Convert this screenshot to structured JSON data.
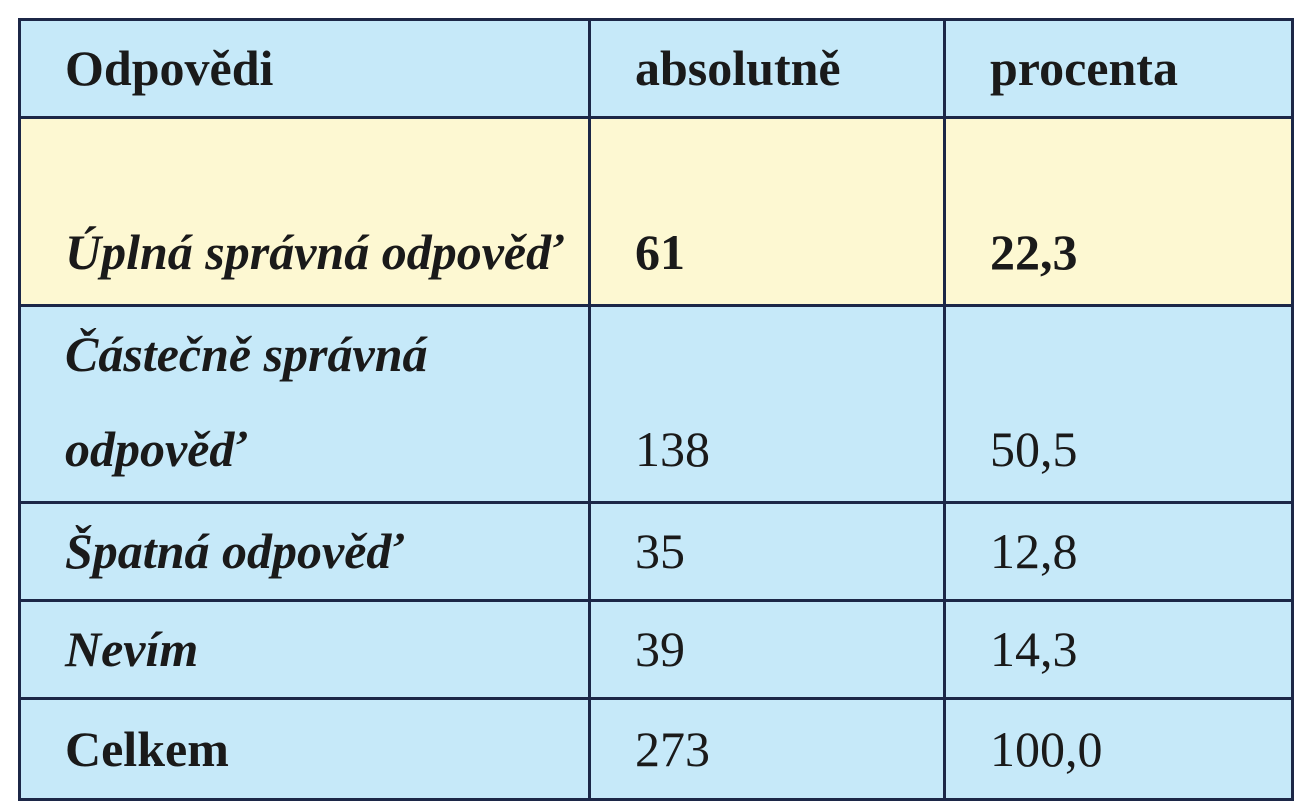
{
  "table": {
    "header": [
      "Odpovědi",
      "absolutně",
      "procenta"
    ],
    "rows": [
      [
        "Úplná správná odpověď",
        "61",
        "22,3"
      ],
      [
        "Částečně správná odpověď",
        "138",
        "50,5"
      ],
      [
        "Špatná odpověď",
        "35",
        "12,8"
      ],
      [
        "Nevím",
        "39",
        "14,3"
      ],
      [
        "Celkem",
        "273",
        "100,0"
      ]
    ]
  }
}
